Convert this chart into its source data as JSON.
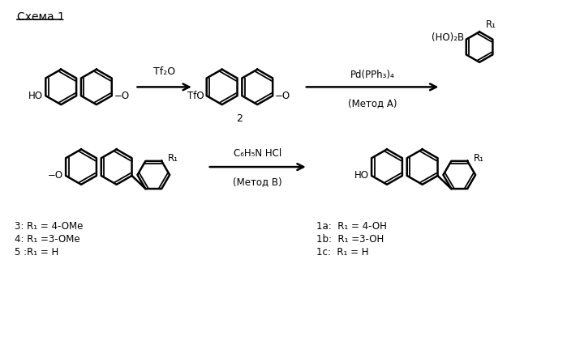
{
  "background_color": "#ffffff",
  "figsize": [
    6.99,
    4.26
  ],
  "dpi": 100,
  "scheme_label": "Схема 1",
  "reagent1": "Tf₂O",
  "reagent2a": "Pd(PPh₃)₄",
  "reagent2b": "(Метод A)",
  "reagent2_ba": "(HO)₂B",
  "compound2_label": "2",
  "reagent3a": "C₆H₅N HCl",
  "reagent3b": "(Метод B)",
  "labels_left": [
    "3: R₁ = 4-OMe",
    "4: R₁ =3-OMe",
    "5 :R₁ = H"
  ],
  "labels_right": [
    "1a:  R₁ = 4-OH",
    "1b:  R₁ =3-OH",
    "1c:  R₁ = H"
  ]
}
